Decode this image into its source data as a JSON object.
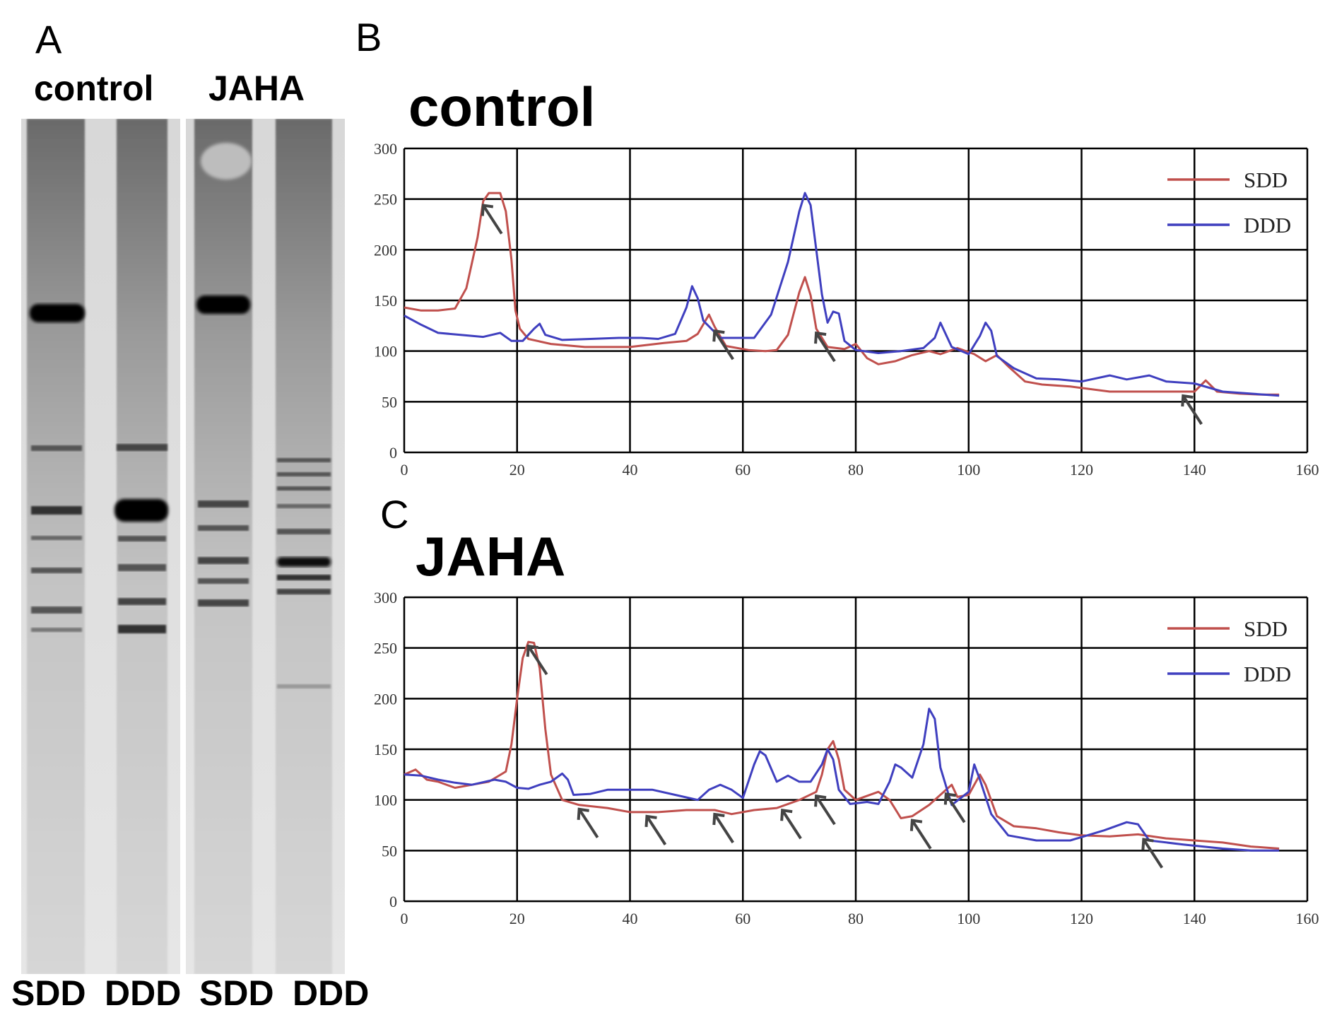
{
  "panel_a": {
    "letter": "A",
    "group_labels": [
      "control",
      "JAHA"
    ],
    "lane_labels": [
      "SDD",
      "DDD",
      "SDD",
      "DDD"
    ]
  },
  "panel_b": {
    "letter": "B"
  },
  "panel_c": {
    "letter": "C"
  },
  "colors": {
    "SDD": "#c0504d",
    "DDD": "#3f3fbf",
    "grid": "#000000",
    "arrow": "#444444"
  },
  "chart_data": [
    {
      "type": "line",
      "title": "control",
      "xlim": [
        0,
        160
      ],
      "ylim": [
        0,
        300
      ],
      "xticks": [
        0,
        20,
        40,
        60,
        80,
        100,
        120,
        140,
        160
      ],
      "yticks": [
        0,
        50,
        100,
        150,
        200,
        250,
        300
      ],
      "grid": true,
      "legend": "top-right",
      "series": [
        {
          "name": "SDD",
          "color": "#c0504d",
          "points": [
            [
              0,
              143
            ],
            [
              3,
              140
            ],
            [
              6,
              140
            ],
            [
              9,
              142
            ],
            [
              11,
              162
            ],
            [
              13,
              212
            ],
            [
              14,
              248
            ],
            [
              15,
              256
            ],
            [
              17,
              256
            ],
            [
              18,
              238
            ],
            [
              19,
              190
            ],
            [
              19.7,
              140
            ],
            [
              20.5,
              122
            ],
            [
              22,
              112
            ],
            [
              26,
              107
            ],
            [
              32,
              104
            ],
            [
              40,
              104
            ],
            [
              46,
              108
            ],
            [
              50,
              110
            ],
            [
              52,
              117
            ],
            [
              54,
              136
            ],
            [
              55,
              124
            ],
            [
              57,
              105
            ],
            [
              61,
              101
            ],
            [
              64,
              100
            ],
            [
              66,
              101
            ],
            [
              68,
              116
            ],
            [
              70,
              158
            ],
            [
              71,
              173
            ],
            [
              72,
              155
            ],
            [
              73,
              122
            ],
            [
              75,
              104
            ],
            [
              78,
              102
            ],
            [
              80,
              107
            ],
            [
              82,
              93
            ],
            [
              84,
              87
            ],
            [
              87,
              90
            ],
            [
              90,
              96
            ],
            [
              93,
              100
            ],
            [
              95,
              97
            ],
            [
              98,
              103
            ],
            [
              101,
              97
            ],
            [
              103,
              90
            ],
            [
              105,
              96
            ],
            [
              107,
              85
            ],
            [
              110,
              70
            ],
            [
              113,
              67
            ],
            [
              118,
              65
            ],
            [
              125,
              60
            ],
            [
              130,
              60
            ],
            [
              135,
              60
            ],
            [
              140,
              60
            ],
            [
              142,
              71
            ],
            [
              144,
              60
            ],
            [
              148,
              58
            ],
            [
              152,
              57
            ],
            [
              155,
              57
            ]
          ]
        },
        {
          "name": "DDD",
          "color": "#3f3fbf",
          "points": [
            [
              0,
              135
            ],
            [
              3,
              126
            ],
            [
              6,
              118
            ],
            [
              10,
              116
            ],
            [
              14,
              114
            ],
            [
              17,
              118
            ],
            [
              19,
              110
            ],
            [
              21,
              110
            ],
            [
              23,
              122
            ],
            [
              24,
              127
            ],
            [
              25,
              116
            ],
            [
              28,
              111
            ],
            [
              33,
              112
            ],
            [
              38,
              113
            ],
            [
              42,
              113
            ],
            [
              45,
              112
            ],
            [
              48,
              117
            ],
            [
              50,
              143
            ],
            [
              51,
              164
            ],
            [
              52,
              152
            ],
            [
              53,
              130
            ],
            [
              56,
              113
            ],
            [
              59,
              113
            ],
            [
              62,
              113
            ],
            [
              65,
              136
            ],
            [
              68,
              188
            ],
            [
              70,
              238
            ],
            [
              71,
              256
            ],
            [
              72,
              244
            ],
            [
              73,
              200
            ],
            [
              74,
              156
            ],
            [
              75,
              128
            ],
            [
              76,
              139
            ],
            [
              77,
              137
            ],
            [
              78,
              110
            ],
            [
              80,
              101
            ],
            [
              84,
              98
            ],
            [
              88,
              100
            ],
            [
              92,
              103
            ],
            [
              94,
              113
            ],
            [
              95,
              128
            ],
            [
              96,
              116
            ],
            [
              97,
              104
            ],
            [
              100,
              97
            ],
            [
              102,
              115
            ],
            [
              103,
              128
            ],
            [
              104,
              120
            ],
            [
              105,
              95
            ],
            [
              108,
              83
            ],
            [
              112,
              73
            ],
            [
              116,
              72
            ],
            [
              120,
              70
            ],
            [
              125,
              76
            ],
            [
              128,
              72
            ],
            [
              132,
              76
            ],
            [
              135,
              70
            ],
            [
              140,
              68
            ],
            [
              145,
              60
            ],
            [
              150,
              58
            ],
            [
              155,
              56
            ]
          ]
        }
      ],
      "arrow_x": [
        14,
        55,
        73,
        138
      ]
    },
    {
      "type": "line",
      "title": "JAHA",
      "xlim": [
        0,
        160
      ],
      "ylim": [
        0,
        300
      ],
      "xticks": [
        0,
        20,
        40,
        60,
        80,
        100,
        120,
        140,
        160
      ],
      "yticks": [
        0,
        50,
        100,
        150,
        200,
        250,
        300
      ],
      "grid": true,
      "legend": "top-right",
      "series": [
        {
          "name": "SDD",
          "color": "#c0504d",
          "points": [
            [
              0,
              125
            ],
            [
              2,
              130
            ],
            [
              4,
              120
            ],
            [
              6,
              118
            ],
            [
              9,
              112
            ],
            [
              12,
              115
            ],
            [
              15,
              118
            ],
            [
              18,
              128
            ],
            [
              19,
              155
            ],
            [
              20,
              200
            ],
            [
              21,
              240
            ],
            [
              22,
              256
            ],
            [
              23,
              255
            ],
            [
              24,
              230
            ],
            [
              25,
              170
            ],
            [
              26,
              125
            ],
            [
              28,
              100
            ],
            [
              31,
              95
            ],
            [
              36,
              92
            ],
            [
              40,
              88
            ],
            [
              45,
              88
            ],
            [
              50,
              90
            ],
            [
              55,
              90
            ],
            [
              58,
              86
            ],
            [
              62,
              90
            ],
            [
              66,
              92
            ],
            [
              70,
              100
            ],
            [
              73,
              108
            ],
            [
              74,
              125
            ],
            [
              75,
              150
            ],
            [
              76,
              158
            ],
            [
              77,
              140
            ],
            [
              78,
              110
            ],
            [
              80,
              100
            ],
            [
              84,
              108
            ],
            [
              86,
              100
            ],
            [
              88,
              82
            ],
            [
              90,
              84
            ],
            [
              93,
              95
            ],
            [
              96,
              110
            ],
            [
              97,
              115
            ],
            [
              98,
              103
            ],
            [
              100,
              105
            ],
            [
              102,
              125
            ],
            [
              103,
              115
            ],
            [
              105,
              84
            ],
            [
              108,
              74
            ],
            [
              112,
              72
            ],
            [
              116,
              68
            ],
            [
              120,
              65
            ],
            [
              125,
              64
            ],
            [
              130,
              66
            ],
            [
              135,
              62
            ],
            [
              140,
              60
            ],
            [
              145,
              58
            ],
            [
              150,
              54
            ],
            [
              155,
              52
            ]
          ]
        },
        {
          "name": "DDD",
          "color": "#3f3fbf",
          "points": [
            [
              0,
              125
            ],
            [
              3,
              124
            ],
            [
              6,
              120
            ],
            [
              9,
              117
            ],
            [
              12,
              115
            ],
            [
              16,
              120
            ],
            [
              18,
              118
            ],
            [
              20,
              112
            ],
            [
              22,
              111
            ],
            [
              24,
              115
            ],
            [
              26,
              118
            ],
            [
              28,
              126
            ],
            [
              29,
              120
            ],
            [
              30,
              105
            ],
            [
              33,
              106
            ],
            [
              36,
              110
            ],
            [
              40,
              110
            ],
            [
              44,
              110
            ],
            [
              48,
              105
            ],
            [
              52,
              100
            ],
            [
              54,
              110
            ],
            [
              56,
              115
            ],
            [
              58,
              110
            ],
            [
              60,
              102
            ],
            [
              62,
              135
            ],
            [
              63,
              148
            ],
            [
              64,
              144
            ],
            [
              66,
              118
            ],
            [
              68,
              124
            ],
            [
              70,
              118
            ],
            [
              72,
              118
            ],
            [
              74,
              135
            ],
            [
              75,
              150
            ],
            [
              76,
              140
            ],
            [
              77,
              110
            ],
            [
              79,
              96
            ],
            [
              82,
              98
            ],
            [
              84,
              96
            ],
            [
              86,
              118
            ],
            [
              87,
              135
            ],
            [
              88,
              132
            ],
            [
              90,
              122
            ],
            [
              92,
              155
            ],
            [
              93,
              190
            ],
            [
              94,
              180
            ],
            [
              95,
              132
            ],
            [
              97,
              95
            ],
            [
              100,
              108
            ],
            [
              101,
              135
            ],
            [
              102,
              120
            ],
            [
              104,
              86
            ],
            [
              107,
              65
            ],
            [
              112,
              60
            ],
            [
              118,
              60
            ],
            [
              124,
              70
            ],
            [
              128,
              78
            ],
            [
              130,
              76
            ],
            [
              132,
              60
            ],
            [
              138,
              56
            ],
            [
              145,
              52
            ],
            [
              150,
              50
            ],
            [
              155,
              50
            ]
          ]
        }
      ],
      "arrow_x": [
        22,
        31,
        43,
        55,
        67,
        73,
        90,
        96,
        131
      ]
    }
  ]
}
